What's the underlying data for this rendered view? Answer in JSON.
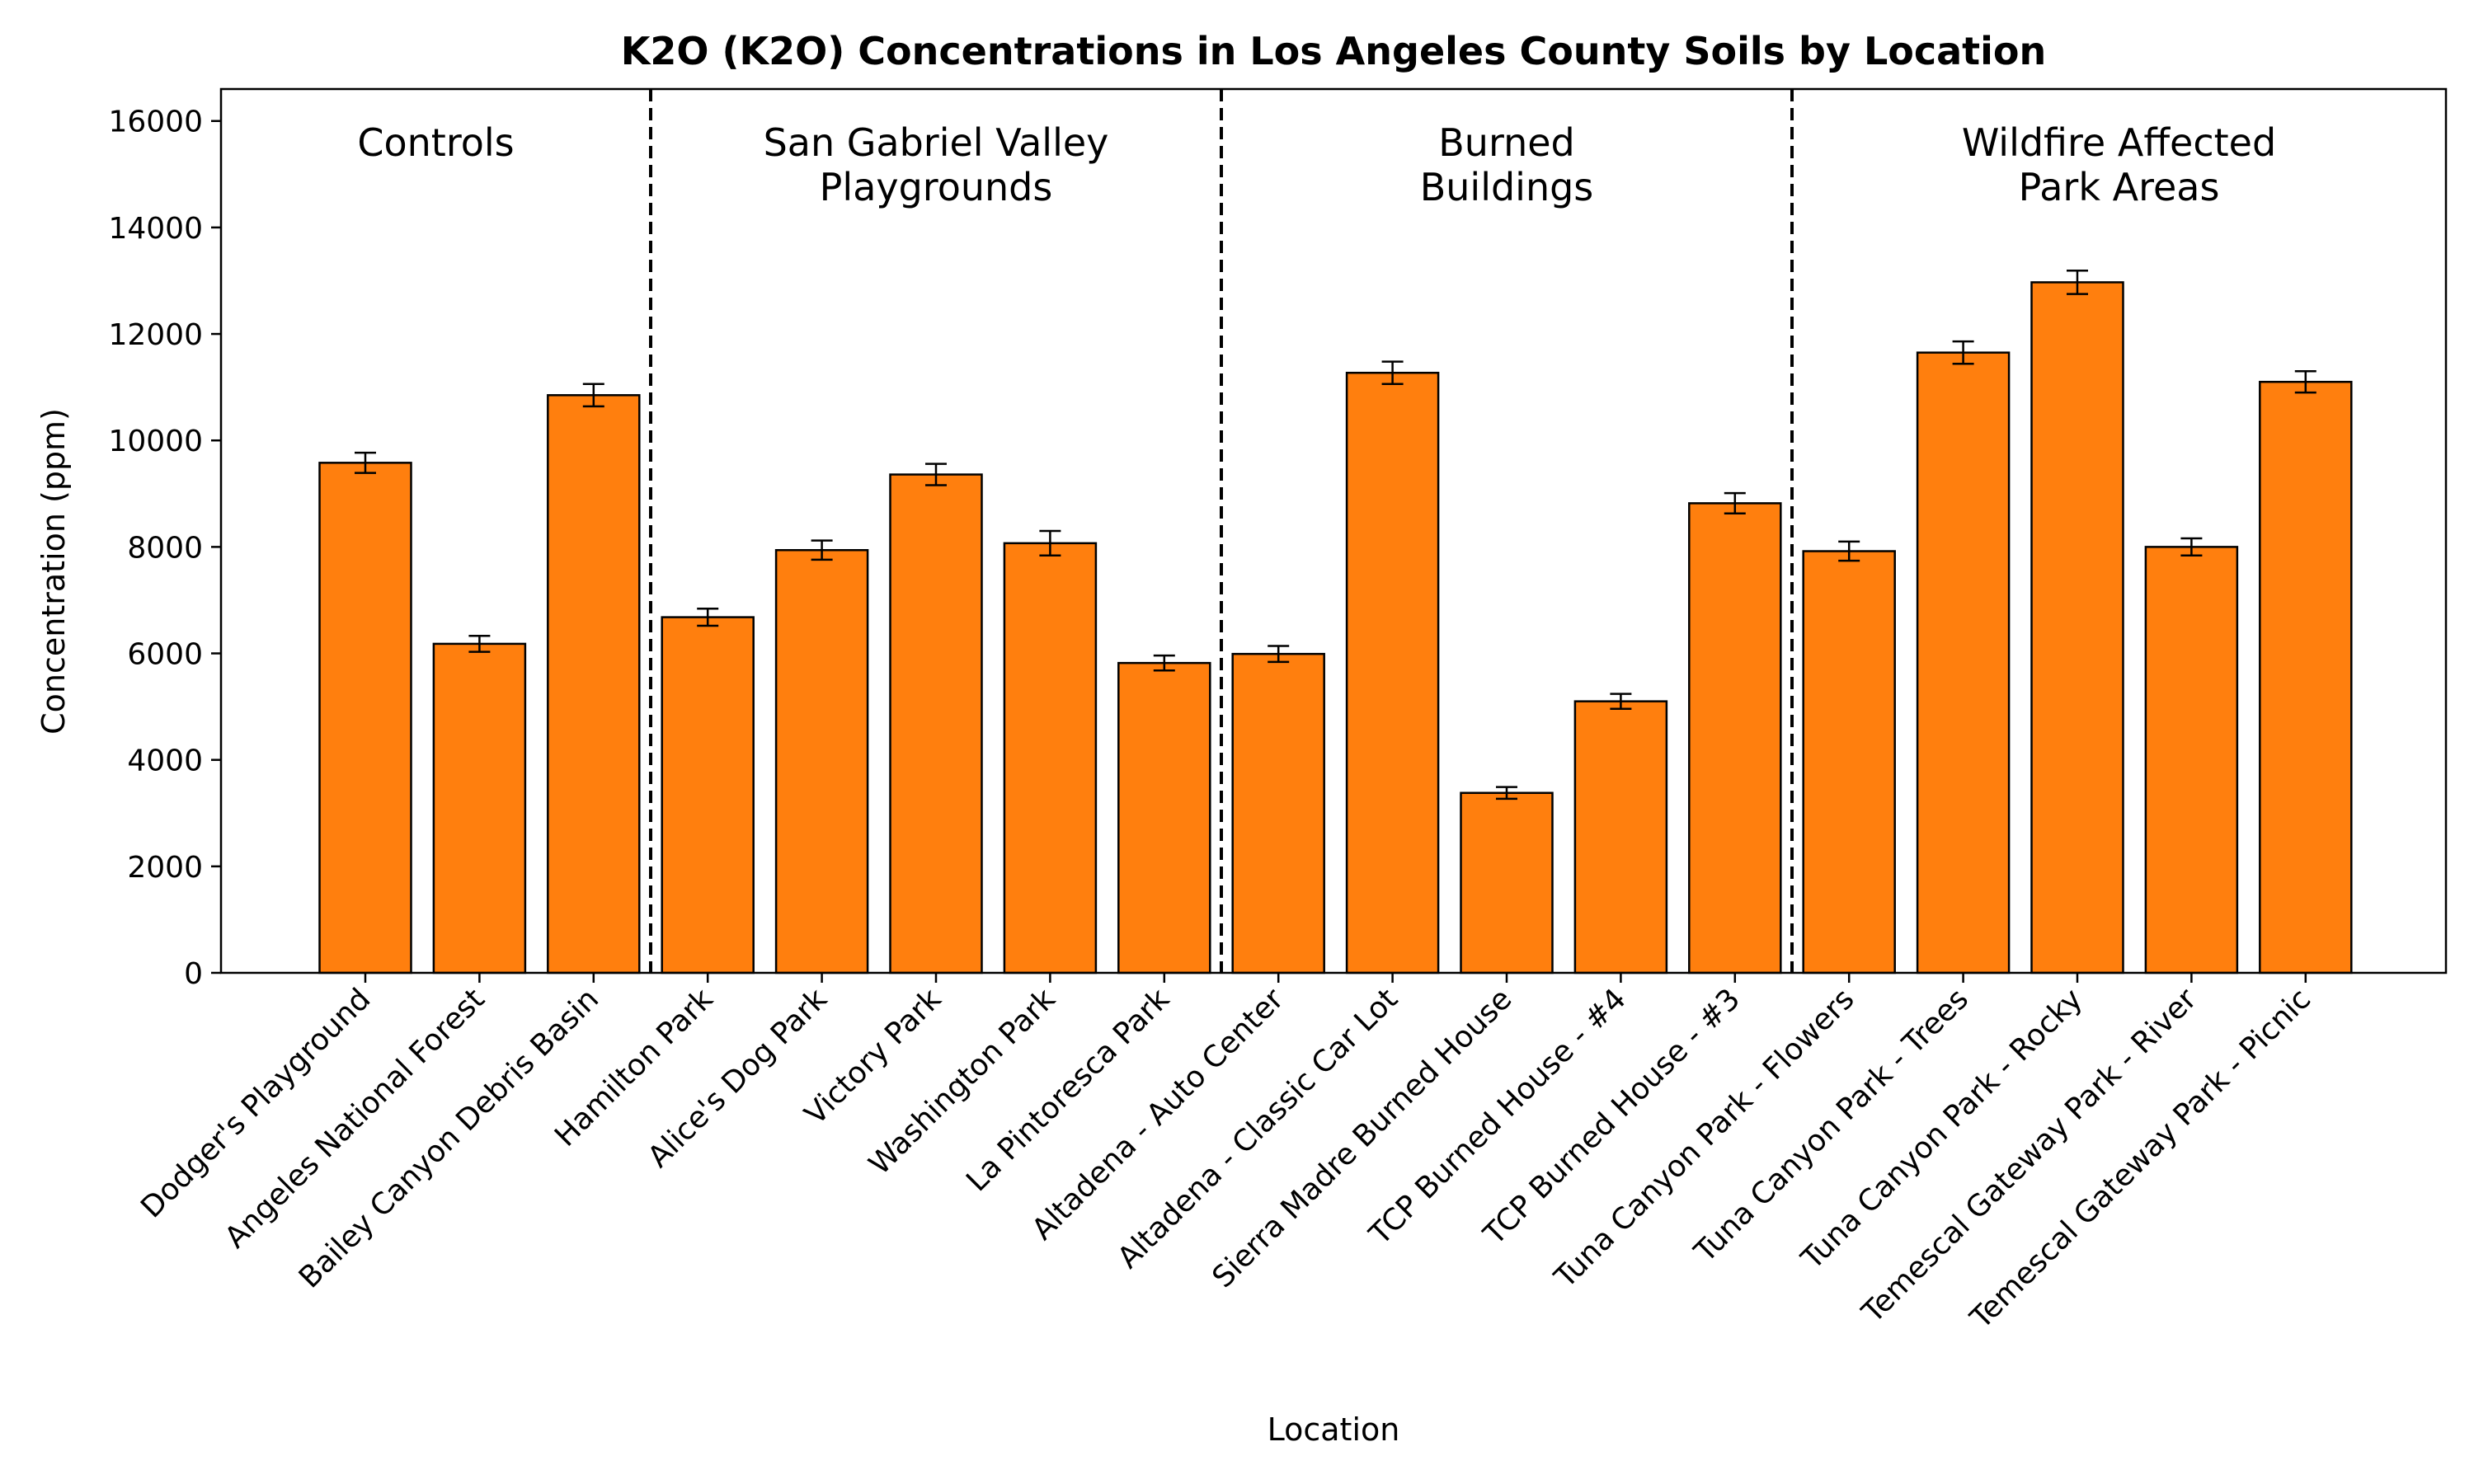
{
  "chart_data": {
    "type": "bar",
    "title": "K2O (K2O) Concentrations in Los Angeles County Soils by Location",
    "xlabel": "Location",
    "ylabel": "Concentration (ppm)",
    "ylim": [
      0,
      16600
    ],
    "yticks": [
      0,
      2000,
      4000,
      6000,
      8000,
      10000,
      12000,
      14000,
      16000
    ],
    "bar_color": "#ff7f0e",
    "edge_color": "#000000",
    "grid": false,
    "categories": [
      "Dodger's Playground",
      "Angeles National Forest",
      "Bailey Canyon Debris Basin",
      "Hamilton Park",
      "Alice's Dog Park",
      "Victory Park",
      "Washington Park",
      "La Pintoresca Park",
      "Altadena - Auto Center",
      "Altadena - Classic Car Lot",
      "Sierra Madre Burned House",
      "TCP Burned House - #4",
      "TCP Burned House - #3",
      "Tuna Canyon Park - Flowers",
      "Tuna Canyon Park - Trees",
      "Tuna Canyon Park - Rocky",
      "Temescal Gateway Park - River",
      "Temescal Gateway Park - Picnic"
    ],
    "values": [
      9580,
      6180,
      10850,
      6680,
      7940,
      9360,
      8070,
      5820,
      5990,
      11270,
      3380,
      5100,
      8820,
      7920,
      11650,
      12970,
      8000,
      11100
    ],
    "errors": [
      190,
      150,
      210,
      160,
      180,
      200,
      230,
      140,
      150,
      210,
      110,
      140,
      190,
      180,
      210,
      220,
      160,
      200
    ],
    "groups": [
      {
        "label_lines": [
          "Controls"
        ],
        "start": 0,
        "end": 2
      },
      {
        "label_lines": [
          "San Gabriel Valley",
          "Playgrounds"
        ],
        "start": 3,
        "end": 7
      },
      {
        "label_lines": [
          "Burned",
          "Buildings"
        ],
        "start": 8,
        "end": 12
      },
      {
        "label_lines": [
          "Wildfire Affected",
          "Park Areas"
        ],
        "start": 13,
        "end": 17
      }
    ]
  }
}
